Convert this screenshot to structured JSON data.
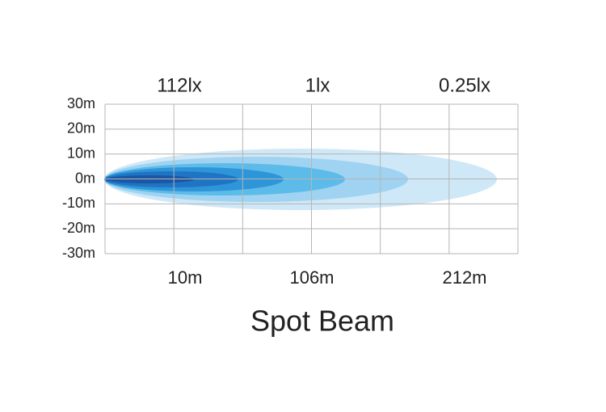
{
  "title": "Spot Beam",
  "lux_labels": [
    "112lx",
    "1lx",
    "0.25lx"
  ],
  "y_labels": [
    "30m",
    "20m",
    "10m",
    "0m",
    "-10m",
    "-20m",
    "-30m"
  ],
  "x_labels": [
    "10m",
    "106m",
    "212m"
  ]
}
